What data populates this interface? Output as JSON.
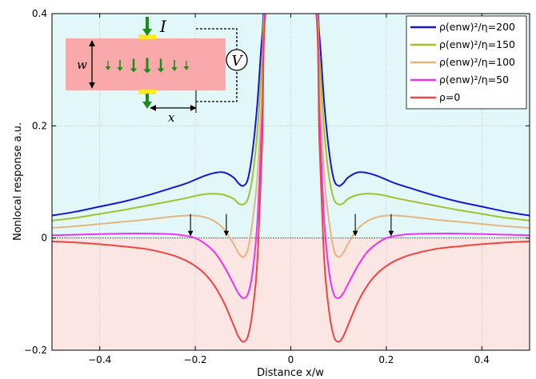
{
  "chart_data": {
    "type": "line",
    "title": "",
    "xlabel": "Distance x/w",
    "ylabel": "Nonlocal response a.u.",
    "xlim": [
      -0.5,
      0.5
    ],
    "ylim": [
      -0.2,
      0.4
    ],
    "xticks": [
      -0.4,
      -0.2,
      0,
      0.2,
      0.4
    ],
    "xtick_labels": [
      "−0.4",
      "−0.2",
      "0",
      "0.2",
      "0.4"
    ],
    "yticks": [
      -0.2,
      0,
      0.2,
      0.4
    ],
    "ytick_labels": [
      "−0.2",
      "0",
      "0.2",
      "0.4"
    ],
    "grid": true,
    "legend_position": "top-right",
    "background_colors": {
      "positive_region": "#e2f8f8",
      "negative_region": "#fbe6e3"
    },
    "x": [
      0,
      0.05,
      0.06,
      0.07,
      0.08,
      0.09,
      0.1,
      0.11,
      0.12,
      0.14,
      0.16,
      0.18,
      0.2,
      0.22,
      0.25,
      0.3,
      0.35,
      0.4,
      0.45,
      0.5
    ],
    "series": [
      {
        "name": "ρ(enw)²/η=200",
        "color": "#1515d6",
        "values": [
          0.42,
          0.42,
          0.36,
          0.24,
          0.155,
          0.105,
          0.093,
          0.098,
          0.108,
          0.117,
          0.116,
          0.111,
          0.104,
          0.097,
          0.089,
          0.076,
          0.065,
          0.056,
          0.047,
          0.04
        ]
      },
      {
        "name": "ρ(enw)²/η=150",
        "color": "#a3c12c",
        "values": [
          0.42,
          0.42,
          0.32,
          0.19,
          0.11,
          0.07,
          0.06,
          0.062,
          0.07,
          0.077,
          0.079,
          0.078,
          0.075,
          0.071,
          0.066,
          0.058,
          0.05,
          0.043,
          0.036,
          0.031
        ]
      },
      {
        "name": "ρ(enw)²/η=100",
        "color": "#e8b47e",
        "values": [
          0.42,
          0.42,
          0.27,
          0.11,
          0.03,
          -0.02,
          -0.034,
          -0.026,
          -0.01,
          0.016,
          0.03,
          0.037,
          0.04,
          0.04,
          0.038,
          0.033,
          0.029,
          0.025,
          0.021,
          0.018
        ]
      },
      {
        "name": "ρ(enw)²/η=50",
        "color": "#ee33ee",
        "values": [
          0.42,
          0.42,
          0.22,
          0.03,
          -0.06,
          -0.1,
          -0.107,
          -0.098,
          -0.082,
          -0.05,
          -0.025,
          -0.01,
          0.0,
          0.004,
          0.007,
          0.008,
          0.008,
          0.007,
          0.006,
          0.005
        ]
      },
      {
        "name": "ρ=0",
        "color": "#ee4444",
        "values": [
          0.42,
          0.42,
          0.17,
          -0.04,
          -0.13,
          -0.175,
          -0.185,
          -0.175,
          -0.155,
          -0.115,
          -0.085,
          -0.064,
          -0.05,
          -0.04,
          -0.03,
          -0.02,
          -0.015,
          -0.011,
          -0.008,
          -0.006
        ]
      }
    ],
    "annotations": {
      "arrows_at_zero_crossing": [
        -0.21,
        -0.135,
        0.135,
        0.21
      ]
    }
  },
  "inset": {
    "current_label": "I",
    "voltage_label": "V",
    "width_label": "w",
    "distance_label": "x",
    "colors": {
      "channel": "#f9a9a9",
      "contact": "#ffeb1f",
      "arrow": "#1a8c1a"
    }
  }
}
